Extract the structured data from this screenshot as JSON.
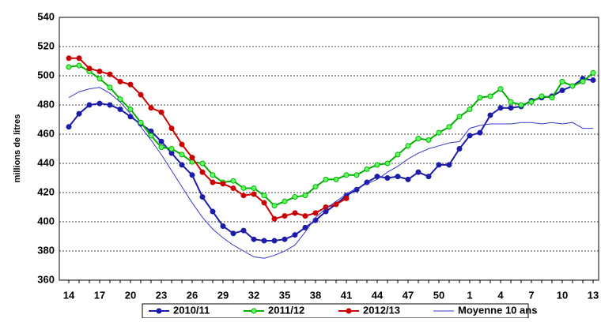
{
  "chart_data": {
    "type": "line",
    "y_label": "millions de litres",
    "categories": [
      "14",
      null,
      null,
      "17",
      null,
      null,
      "20",
      null,
      null,
      "23",
      null,
      null,
      "26",
      null,
      null,
      "29",
      null,
      null,
      "32",
      null,
      null,
      "35",
      null,
      null,
      "38",
      null,
      null,
      "41",
      null,
      null,
      "44",
      null,
      null,
      "47",
      null,
      null,
      "50",
      null,
      null,
      "1",
      null,
      null,
      "4",
      null,
      null,
      "7",
      null,
      null,
      "10",
      null,
      null,
      "13"
    ],
    "series": [
      {
        "name": "2010/11",
        "color": "#1c1ca8",
        "marker_color": "#1c1ca8",
        "markers": true,
        "values": [
          465,
          474,
          480,
          481,
          480,
          477,
          472,
          467,
          462,
          455,
          447,
          439,
          432,
          417,
          407,
          397,
          392,
          394,
          388,
          387,
          387,
          388,
          391,
          396,
          401,
          407,
          412,
          418,
          422,
          427,
          431,
          430,
          431,
          429,
          434,
          431,
          439,
          439,
          450,
          459,
          461,
          473,
          478,
          478,
          479,
          483,
          485,
          486,
          490,
          493,
          498,
          497
        ]
      },
      {
        "name": "2011/12",
        "color": "#00b000",
        "marker_color": "#66ff66",
        "markers": true,
        "values": [
          506,
          507,
          503,
          498,
          492,
          484,
          477,
          468,
          459,
          451,
          450,
          446,
          441,
          440,
          432,
          427,
          428,
          423,
          423,
          418,
          411,
          414,
          417,
          418,
          424,
          429,
          429,
          432,
          432,
          436,
          439,
          440,
          446,
          452,
          457,
          456,
          461,
          465,
          472,
          477,
          485,
          486,
          491,
          482,
          480,
          482,
          486,
          485,
          496,
          493,
          496,
          502
        ]
      },
      {
        "name": "2012/13",
        "color": "#cc0000",
        "marker_color": "#cc0000",
        "markers": true,
        "values": [
          512,
          512,
          505,
          503,
          501,
          496,
          494,
          487,
          478,
          475,
          464,
          453,
          444,
          434,
          427,
          426,
          423,
          418,
          419,
          413,
          402,
          404,
          406,
          404,
          406,
          410,
          412,
          416,
          null,
          null,
          null,
          null,
          null,
          null,
          null,
          null,
          null,
          null,
          null,
          null,
          null,
          null,
          null,
          null,
          null,
          null,
          null,
          null,
          null,
          null,
          null,
          null
        ]
      },
      {
        "name": "Moyenne 10 ans",
        "color": "#3a3ac8",
        "markers": false,
        "values": [
          485,
          489,
          491,
          492,
          488,
          482,
          474,
          465,
          456,
          446,
          435,
          424,
          413,
          403,
          395,
          389,
          384,
          380,
          376,
          375,
          377,
          380,
          384,
          393,
          403,
          409,
          414,
          419,
          423,
          426,
          429,
          434,
          438,
          443,
          447,
          450,
          452,
          454,
          455,
          464,
          466,
          467,
          467,
          467,
          468,
          468,
          467,
          468,
          467,
          468,
          464,
          464
        ]
      }
    ],
    "ylim": [
      360,
      540
    ],
    "yticks": [
      360,
      380,
      400,
      420,
      440,
      460,
      480,
      500,
      520,
      540
    ],
    "grid": true,
    "legend": "bottom"
  }
}
